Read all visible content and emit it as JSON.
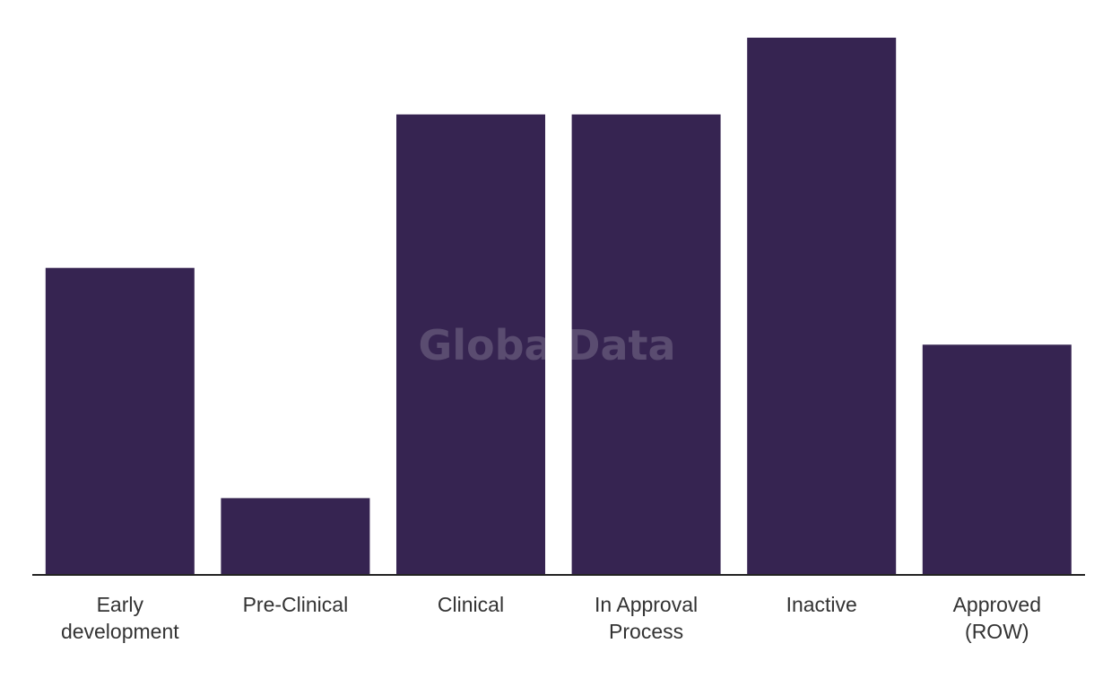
{
  "chart_data": {
    "type": "bar",
    "categories": [
      [
        "Early",
        "development"
      ],
      [
        "Pre-Clinical"
      ],
      [
        "Clinical"
      ],
      [
        "In Approval",
        "Process"
      ],
      [
        "Inactive"
      ],
      [
        "Approved",
        "(ROW)"
      ]
    ],
    "values": [
      4,
      1,
      6,
      6,
      7,
      3
    ],
    "ylim": [
      0,
      7
    ],
    "title": "",
    "xlabel": "",
    "ylabel": "",
    "grid": false,
    "legend": "none",
    "bar_color": "#362451",
    "axis_color": "#222222",
    "label_color": "#333333"
  },
  "watermark": {
    "text": "GlobalData",
    "color": "#ffffff"
  }
}
